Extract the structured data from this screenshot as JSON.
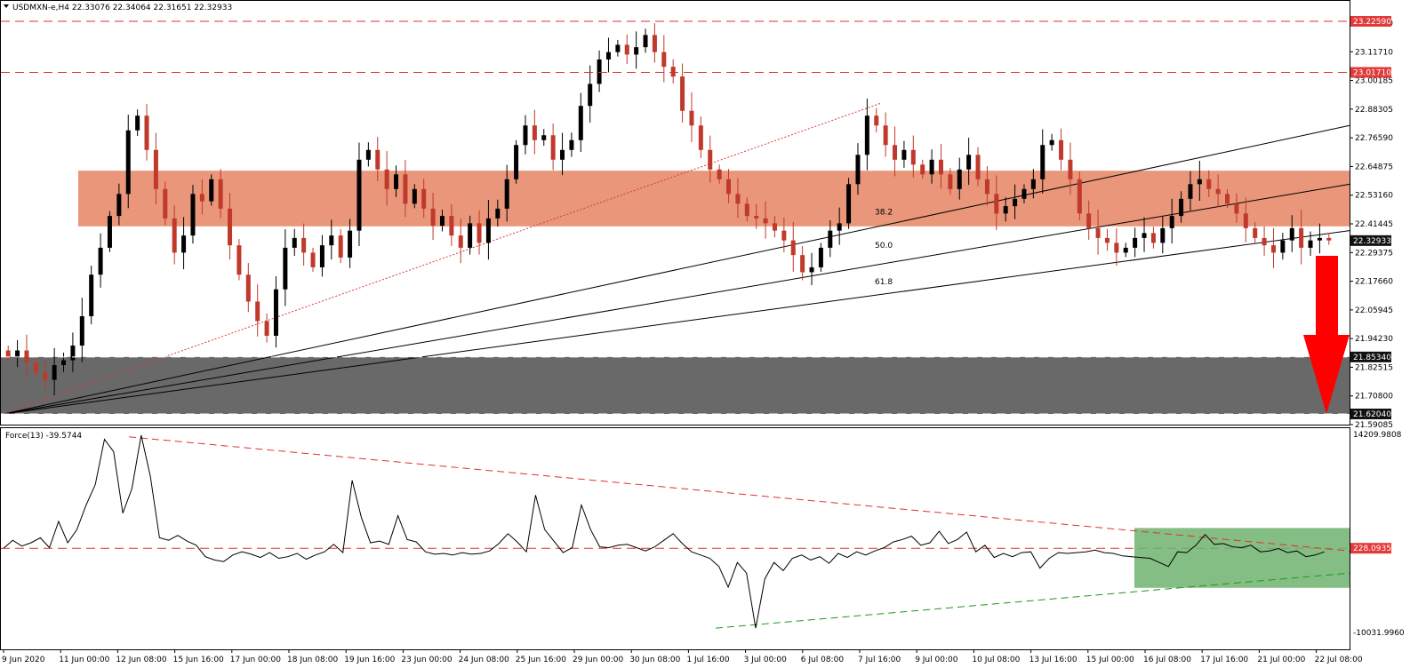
{
  "header": {
    "main": "USDMXN-e,H4  22.33076 22.34064 22.31651 22.32933",
    "indicator": "Force(13) -39.5744"
  },
  "colors": {
    "bull": "#000000",
    "bear": "#c0392b",
    "resistance_zone": "#e9967a",
    "support_zone": "#696969",
    "dashed": "#e03030",
    "arrow": "#ff0000",
    "green_zone": "#6fb36f",
    "green_line": "#1a9a1a",
    "tag_red": "#e23a3a",
    "tag_black": "#111111"
  },
  "price_axis": {
    "ticks": [
      "23.22590",
      "23.11710",
      "23.00185",
      "22.88305",
      "22.76590",
      "22.64875",
      "22.53160",
      "22.41445",
      "22.29375",
      "22.17660",
      "22.05945",
      "21.94230",
      "21.82515",
      "21.70800",
      "21.59085"
    ],
    "tags": [
      {
        "text": "23.22590",
        "style": "red"
      },
      {
        "text": "23.01710",
        "style": "red"
      },
      {
        "text": "22.32933",
        "style": "black"
      },
      {
        "text": "21.85340",
        "style": "black"
      },
      {
        "text": "21.62040",
        "style": "black"
      }
    ]
  },
  "force_axis": {
    "ticks": [
      "14209.9808",
      "-10031.9960"
    ],
    "tag": "228.0935"
  },
  "time_labels": [
    "9 Jun 2020",
    "11 Jun 00:00",
    "12 Jun 08:00",
    "15 Jun 16:00",
    "17 Jun 00:00",
    "18 Jun 08:00",
    "19 Jun 16:00",
    "23 Jun 00:00",
    "24 Jun 08:00",
    "25 Jun 16:00",
    "29 Jun 00:00",
    "30 Jun 08:00",
    "1 Jul 16:00",
    "3 Jul 00:00",
    "6 Jul 08:00",
    "7 Jul 16:00",
    "9 Jul 00:00",
    "10 Jul 08:00",
    "13 Jul 16:00",
    "15 Jul 00:00",
    "16 Jul 08:00",
    "17 Jul 16:00",
    "21 Jul 00:00",
    "22 Jul 08:00"
  ],
  "fib_labels": [
    "38.2",
    "50.0",
    "61.8"
  ],
  "chart_data": {
    "type": "candlestick",
    "symbol": "USDMXN-e",
    "timeframe": "H4",
    "ohlc_last": {
      "open": 22.33076,
      "high": 22.34064,
      "low": 22.31651,
      "close": 22.32933
    },
    "ylim": [
      21.59085,
      23.2259
    ],
    "horizontal_levels": [
      23.2259,
      23.0171,
      21.8534,
      21.6204
    ],
    "resistance_zone": [
      22.3875,
      22.615
    ],
    "support_zone": [
      21.6204,
      21.8534
    ],
    "fib_fan_levels": [
      "38.2",
      "50.0",
      "61.8"
    ],
    "close_path": [
      21.85,
      21.88,
      21.83,
      21.79,
      21.76,
      21.82,
      21.84,
      21.9,
      22.02,
      22.19,
      22.3,
      22.43,
      22.52,
      22.78,
      22.84,
      22.7,
      22.54,
      22.42,
      22.28,
      22.35,
      22.52,
      22.49,
      22.58,
      22.46,
      22.31,
      22.19,
      22.08,
      22.0,
      21.94,
      22.13,
      22.3,
      22.34,
      22.28,
      22.22,
      22.31,
      22.35,
      22.26,
      22.37,
      22.66,
      22.7,
      22.62,
      22.54,
      22.6,
      22.48,
      22.54,
      22.46,
      22.39,
      22.43,
      22.35,
      22.3,
      22.4,
      22.32,
      22.42,
      22.46,
      22.58,
      22.72,
      22.8,
      22.74,
      22.76,
      22.66,
      22.7,
      22.74,
      22.88,
      22.97,
      23.07,
      23.1,
      23.13,
      23.09,
      23.12,
      23.17,
      23.1,
      23.04,
      23.0,
      22.86,
      22.8,
      22.7,
      22.62,
      22.58,
      22.52,
      22.48,
      22.43,
      22.42,
      22.4,
      22.37,
      22.33,
      22.27,
      22.2,
      22.22,
      22.3,
      22.37,
      22.4,
      22.56,
      22.68,
      22.84,
      22.8,
      22.72,
      22.66,
      22.7,
      22.64,
      22.6,
      22.66,
      22.6,
      22.54,
      22.62,
      22.68,
      22.58,
      22.52,
      22.44,
      22.47,
      22.5,
      22.54,
      22.58,
      22.72,
      22.74,
      22.66,
      22.58,
      22.44,
      22.38,
      22.34,
      22.32,
      22.28,
      22.3,
      22.34,
      22.36,
      22.32,
      22.38,
      22.43,
      22.5,
      22.56,
      22.58,
      22.54,
      22.52,
      22.48,
      22.44,
      22.38,
      22.34,
      22.31,
      22.28,
      22.33,
      22.38,
      22.3,
      22.33,
      22.34,
      22.33
    ],
    "force_index": {
      "name": "Force(13)",
      "current": -39.5744,
      "ylim": [
        -10031.996,
        14209.9808
      ],
      "reference_level": 228.0935,
      "path": [
        228,
        1200,
        500,
        900,
        1500,
        300,
        3500,
        900,
        2500,
        5500,
        8000,
        13500,
        12000,
        4500,
        7500,
        14000,
        9000,
        1500,
        1200,
        1800,
        1100,
        600,
        -800,
        -1200,
        -1400,
        -600,
        -200,
        -500,
        -900,
        -300,
        -1000,
        -800,
        -400,
        -1100,
        -600,
        -200,
        700,
        -300,
        8500,
        4000,
        900,
        1100,
        700,
        4200,
        1300,
        1000,
        -200,
        -500,
        -400,
        -600,
        -300,
        -500,
        -400,
        -100,
        800,
        2000,
        1000,
        -200,
        6700,
        2500,
        1100,
        -300,
        300,
        5500,
        2500,
        400,
        300,
        600,
        700,
        300,
        -100,
        400,
        1200,
        2000,
        800,
        -200,
        -600,
        -1000,
        -2000,
        -4500,
        -1500,
        -2800,
        -9500,
        -3500,
        -1500,
        -2500,
        -1000,
        -600,
        -1200,
        -800,
        -1600,
        -400,
        -900,
        -200,
        -600,
        -100,
        300,
        1000,
        1300,
        1700,
        600,
        900,
        2300,
        800,
        1300,
        2200,
        -200,
        600,
        -900,
        -400,
        -800,
        -300,
        -200,
        -2200,
        -1000,
        -300,
        -400,
        -300,
        -200,
        0,
        -300,
        -400,
        -700,
        -800,
        -900,
        -1000,
        -1500,
        -2000,
        -200,
        -300,
        600,
        1900,
        700,
        800,
        400,
        300,
        600,
        -200,
        -100,
        200,
        -300,
        -100,
        -800,
        -600,
        -200
      ]
    }
  }
}
